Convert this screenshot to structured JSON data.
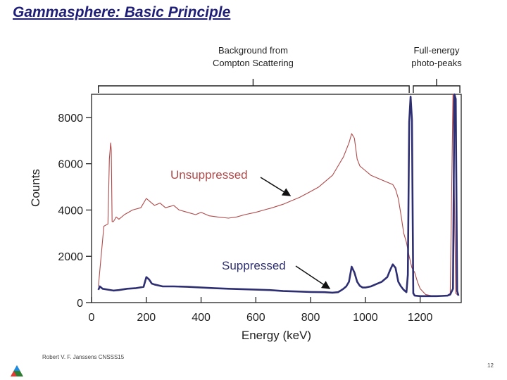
{
  "slide": {
    "title": "Gammasphere: Basic Principle",
    "footer": "Robert V. F. Janssens CNSSS15",
    "page_number": "12"
  },
  "colors": {
    "title": "#1f1f7a",
    "unsuppressed": "#b04a4a",
    "suppressed": "#2e2f72",
    "annotation_unsuppressed": "#b04a4a",
    "annotation_suppressed": "#2e2f72"
  },
  "chart_data": {
    "type": "line",
    "xlabel": "Energy (keV)",
    "ylabel": "Counts",
    "xlim": [
      0,
      1350
    ],
    "ylim": [
      0,
      9000
    ],
    "xticks": [
      0,
      200,
      400,
      600,
      800,
      1000,
      1200
    ],
    "yticks": [
      0,
      2000,
      4000,
      6000,
      8000
    ],
    "grid": false,
    "legend": "none",
    "annotations": {
      "background": [
        "Background from",
        "Compton Scattering"
      ],
      "photopeaks": [
        "Full-energy",
        "photo-peaks"
      ],
      "unsuppressed_label": "Unsuppressed",
      "suppressed_label": "Suppressed"
    },
    "series": [
      {
        "name": "Unsuppressed",
        "x": [
          25,
          45,
          60,
          65,
          70,
          72,
          75,
          80,
          85,
          90,
          100,
          120,
          150,
          180,
          200,
          210,
          230,
          250,
          270,
          300,
          320,
          350,
          380,
          400,
          430,
          460,
          500,
          530,
          560,
          600,
          630,
          660,
          700,
          730,
          760,
          800,
          830,
          860,
          880,
          900,
          920,
          940,
          950,
          960,
          970,
          980,
          1000,
          1020,
          1040,
          1060,
          1080,
          1100,
          1110,
          1120,
          1130,
          1140,
          1150,
          1160,
          1170,
          1180,
          1190,
          1200,
          1220,
          1240,
          1260,
          1280,
          1300,
          1310,
          1320,
          1330,
          1340
        ],
        "y": [
          700,
          3300,
          3400,
          6200,
          6900,
          6600,
          3500,
          3500,
          3600,
          3700,
          3600,
          3800,
          4000,
          4100,
          4500,
          4400,
          4200,
          4300,
          4100,
          4200,
          4000,
          3900,
          3800,
          3900,
          3750,
          3700,
          3650,
          3700,
          3800,
          3900,
          4000,
          4100,
          4250,
          4400,
          4550,
          4800,
          5000,
          5300,
          5500,
          5900,
          6300,
          6900,
          7300,
          7100,
          6200,
          5900,
          5700,
          5500,
          5400,
          5300,
          5200,
          5100,
          4900,
          4500,
          3800,
          3000,
          2600,
          2000,
          1500,
          1300,
          900,
          600,
          350,
          300,
          300,
          300,
          320,
          400,
          9000,
          400,
          300
        ]
      },
      {
        "name": "Suppressed",
        "x": [
          25,
          30,
          40,
          60,
          80,
          100,
          130,
          160,
          190,
          200,
          210,
          220,
          230,
          260,
          300,
          350,
          400,
          450,
          500,
          550,
          600,
          650,
          700,
          750,
          800,
          850,
          880,
          900,
          910,
          920,
          930,
          940,
          950,
          960,
          970,
          980,
          990,
          1000,
          1020,
          1040,
          1060,
          1080,
          1090,
          1100,
          1110,
          1120,
          1130,
          1140,
          1150,
          1155,
          1160,
          1165,
          1170,
          1175,
          1180,
          1200,
          1220,
          1240,
          1260,
          1280,
          1300,
          1310,
          1320,
          1325,
          1330,
          1335,
          1340
        ],
        "y": [
          550,
          700,
          600,
          560,
          520,
          540,
          600,
          620,
          680,
          1100,
          1000,
          820,
          780,
          700,
          700,
          680,
          650,
          620,
          600,
          580,
          560,
          540,
          500,
          480,
          460,
          450,
          430,
          450,
          520,
          600,
          700,
          900,
          1550,
          1300,
          900,
          720,
          650,
          650,
          700,
          800,
          900,
          1100,
          1400,
          1650,
          1500,
          900,
          700,
          550,
          450,
          1200,
          7800,
          8900,
          7900,
          400,
          300,
          280,
          280,
          280,
          280,
          290,
          300,
          350,
          600,
          9000,
          8800,
          500,
          300
        ]
      }
    ]
  }
}
